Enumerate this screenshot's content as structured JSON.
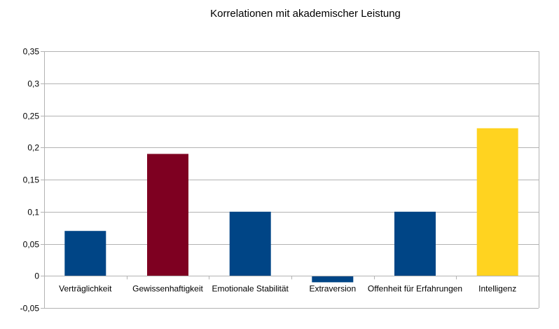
{
  "chart_data": {
    "type": "bar",
    "title": "Korrelationen mit akademischer Leistung",
    "xlabel": "",
    "ylabel": "",
    "categories": [
      "Verträglichkeit",
      "Gewissenhaftigkeit",
      "Emotionale Stabilität",
      "Extraversion",
      "Offenheit für Erfahrungen",
      "Intelligenz"
    ],
    "values": [
      0.07,
      0.19,
      0.1,
      -0.01,
      0.1,
      0.23
    ],
    "bar_colors": [
      "#004586",
      "#7e0021",
      "#004586",
      "#004586",
      "#004586",
      "#ffd320"
    ],
    "ylim": [
      -0.05,
      0.35
    ],
    "yticks": [
      -0.05,
      0,
      0.05,
      0.1,
      0.15,
      0.2,
      0.25,
      0.3,
      0.35
    ],
    "ytick_labels": [
      "-0,05",
      "0",
      "0,05",
      "0,1",
      "0,15",
      "0,2",
      "0,25",
      "0,3",
      "0,35"
    ],
    "grid": true,
    "legend": "none",
    "colors": {
      "grid": "#b3b3b3",
      "axis": "#b3b3b3"
    }
  }
}
